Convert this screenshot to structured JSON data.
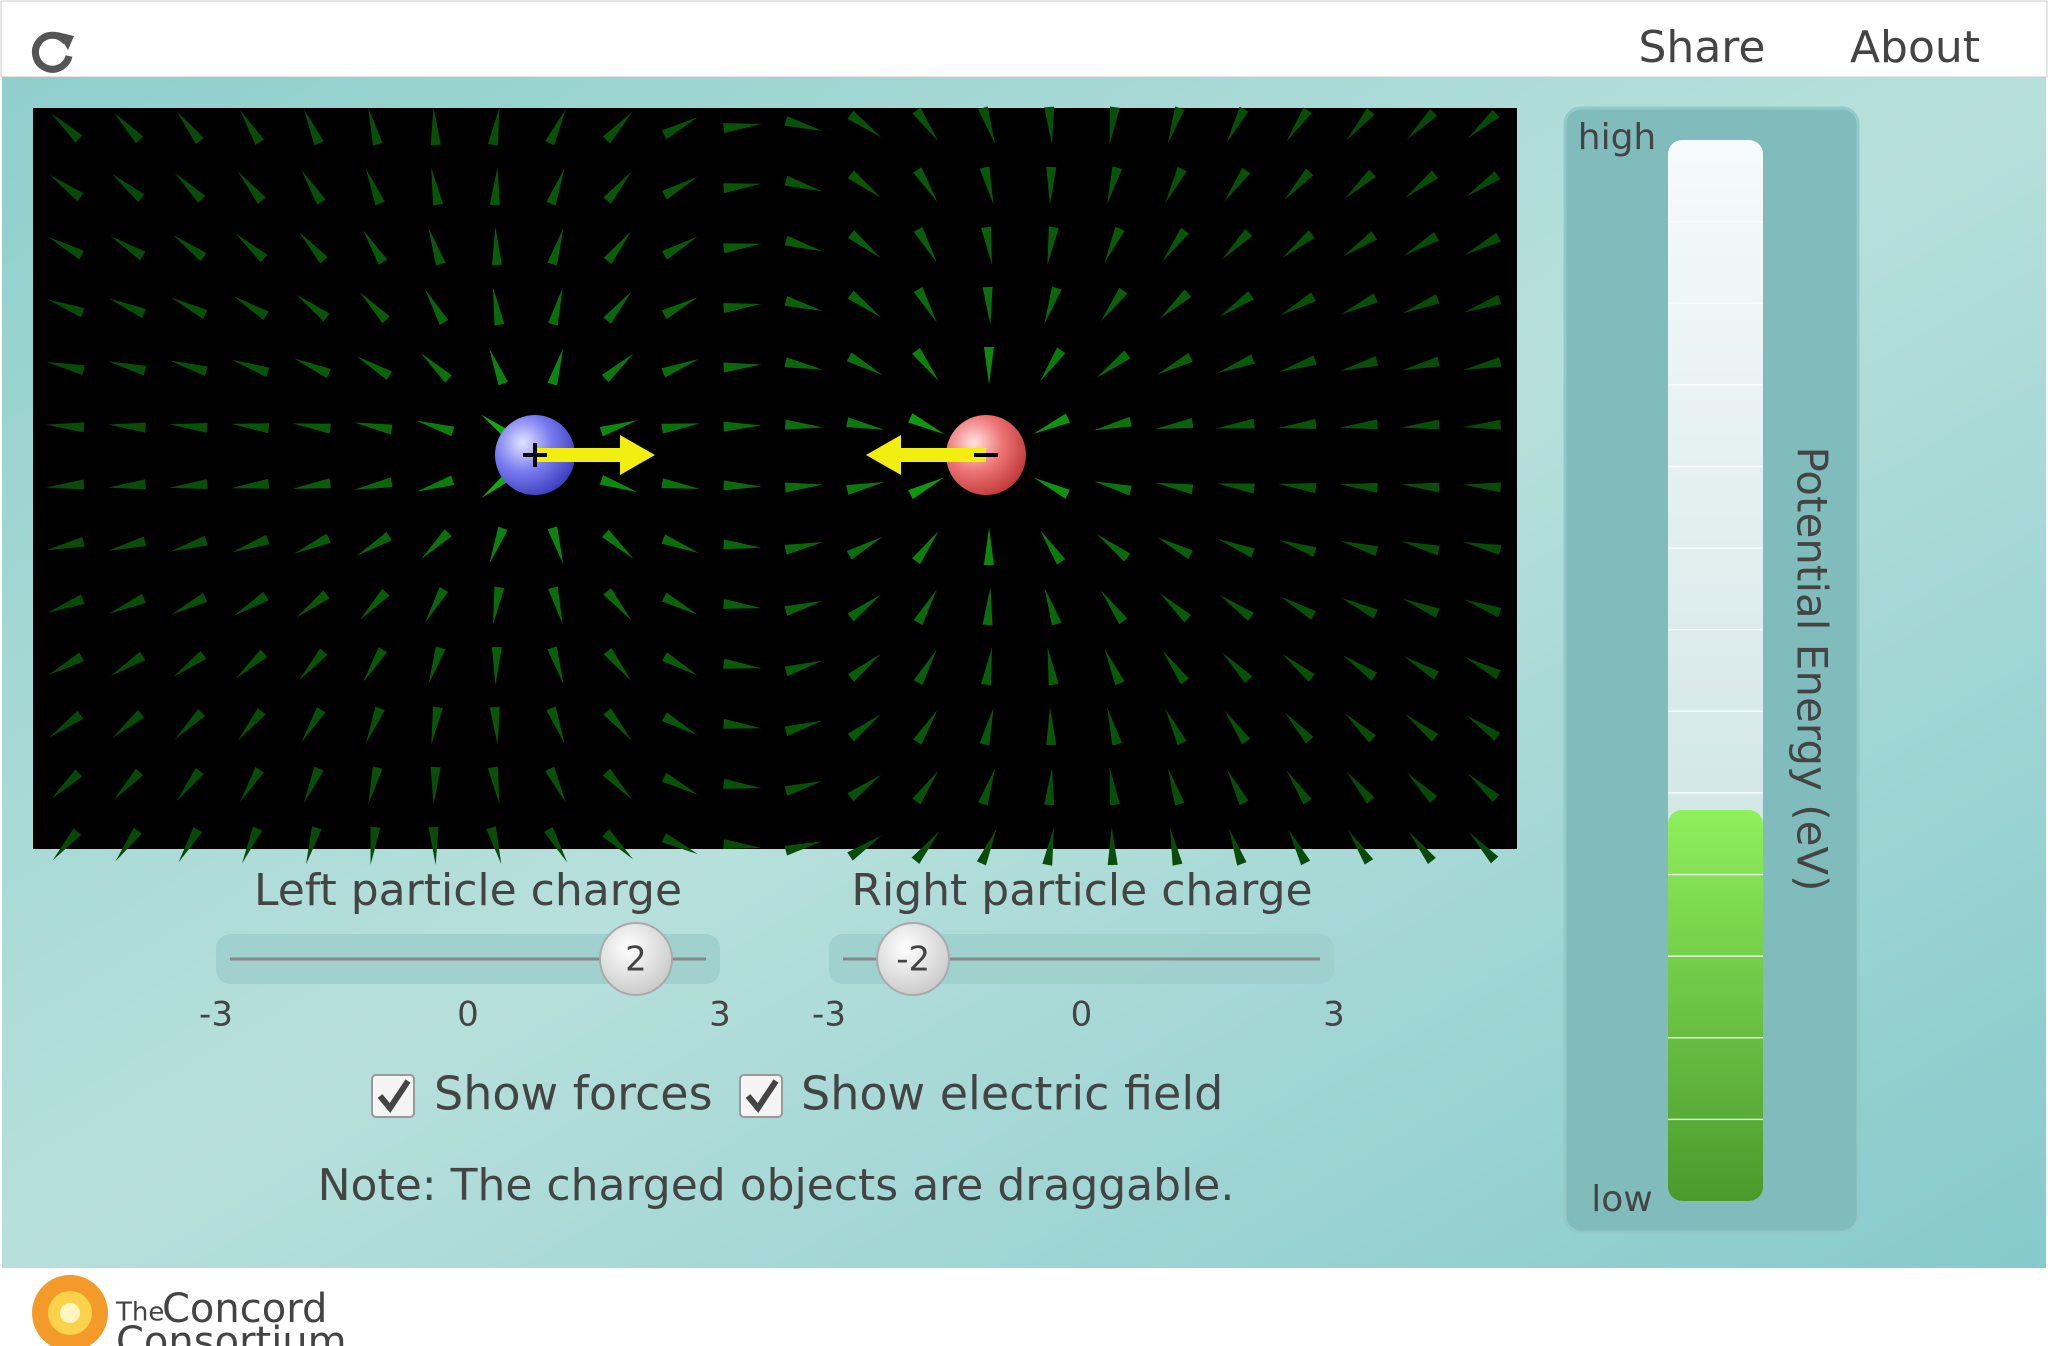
{
  "toolbar": {
    "share": "Share",
    "about": "About"
  },
  "sliders": [
    {
      "label": "Left particle charge",
      "value": 2,
      "min": -3,
      "mid": 0,
      "max": 3
    },
    {
      "label": "Right particle charge",
      "value": -2,
      "min": -3,
      "mid": 0,
      "max": 3
    }
  ],
  "checkboxes": [
    {
      "label": "Show forces",
      "checked": true
    },
    {
      "label": "Show electric field",
      "checked": true
    }
  ],
  "note": "Note: The charged objects are draggable.",
  "energy_meter": {
    "title": "Potential Energy (eV)",
    "high": "high",
    "low": "low"
  },
  "footer": {
    "logo_small": "The",
    "logo_line1": "Concord",
    "logo_line2": "Consortium"
  }
}
